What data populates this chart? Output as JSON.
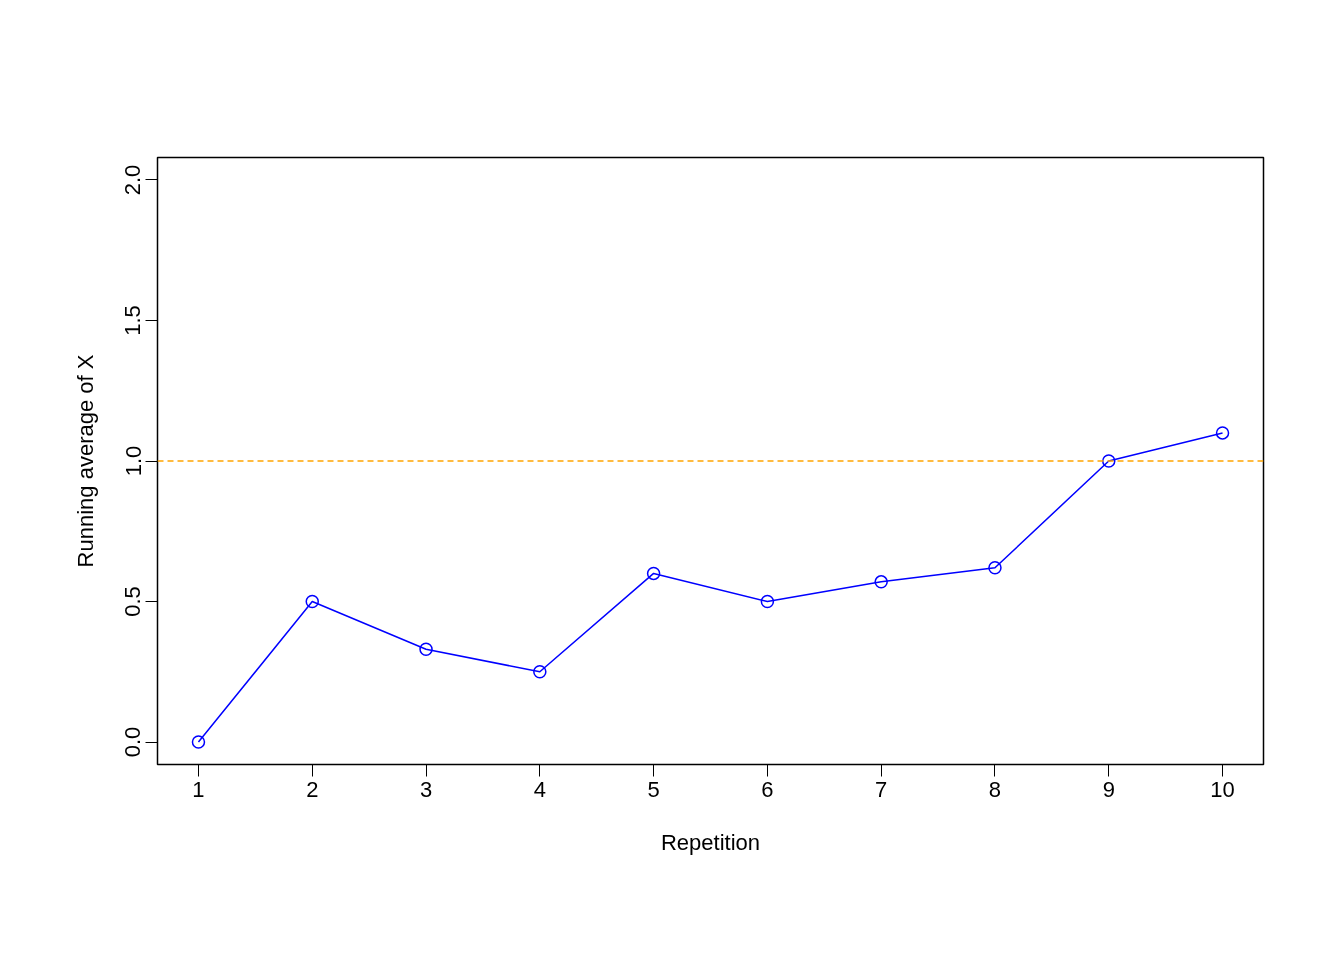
{
  "chart_data": {
    "type": "line",
    "xlabel": "Repetition",
    "ylabel": "Running average of X",
    "x": [
      1,
      2,
      3,
      4,
      5,
      6,
      7,
      8,
      9,
      10
    ],
    "series": [
      {
        "color": "#0000ff",
        "values": [
          0,
          0.5,
          0.33,
          0.25,
          0.6,
          0.5,
          0.57,
          0.62,
          1.0,
          1.1
        ]
      }
    ],
    "xlim": [
      0.64,
      10.36
    ],
    "ylim": [
      -0.08,
      2.08
    ],
    "xticks": [
      1,
      2,
      3,
      4,
      5,
      6,
      7,
      8,
      9,
      10
    ],
    "yticks": [
      {
        "value": 0,
        "label": "0.0"
      },
      {
        "value": 0.5,
        "label": "0.5"
      },
      {
        "value": 1,
        "label": "1.0"
      },
      {
        "value": 1.5,
        "label": "1.5"
      },
      {
        "value": 2,
        "label": "2.0"
      }
    ],
    "ref_lines": [
      {
        "axis": "y",
        "value": 1,
        "color": "#ffa500",
        "line_style": "dashed"
      }
    ],
    "marker": "circle",
    "line_style": "solid",
    "grid": false
  }
}
